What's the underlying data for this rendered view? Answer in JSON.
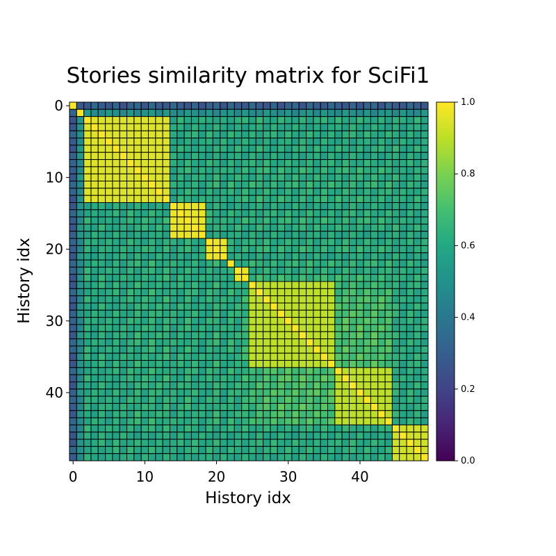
{
  "chart_data": {
    "type": "heatmap",
    "title": "Stories similarity matrix for SciFi1",
    "xlabel": "History idx",
    "ylabel": "History idx",
    "n": 50,
    "xticks": [
      0,
      10,
      20,
      30,
      40
    ],
    "yticks": [
      0,
      10,
      20,
      30,
      40
    ],
    "xtick_labels": [
      "0",
      "10",
      "20",
      "30",
      "40"
    ],
    "ytick_labels": [
      "0",
      "10",
      "20",
      "30",
      "40"
    ],
    "colorbar": {
      "range": [
        0.0,
        1.0
      ],
      "ticks": [
        0.0,
        0.2,
        0.4,
        0.6,
        0.8,
        1.0
      ],
      "tick_labels": [
        "0.0",
        "0.2",
        "0.4",
        "0.6",
        "0.8",
        "1.0"
      ]
    },
    "colormap": "viridis",
    "grid_cell_border": "#000000",
    "blocks": [
      {
        "start": 0,
        "end": 0,
        "within": 1.0
      },
      {
        "start": 1,
        "end": 1,
        "within": 1.0
      },
      {
        "start": 2,
        "end": 13,
        "within": 0.95
      },
      {
        "start": 14,
        "end": 18,
        "within": 0.97
      },
      {
        "start": 19,
        "end": 21,
        "within": 0.97
      },
      {
        "start": 22,
        "end": 22,
        "within": 1.0
      },
      {
        "start": 23,
        "end": 24,
        "within": 0.97
      },
      {
        "start": 25,
        "end": 36,
        "within": 0.9
      },
      {
        "start": 37,
        "end": 44,
        "within": 0.9
      },
      {
        "start": 45,
        "end": 49,
        "within": 0.93
      }
    ],
    "row_profile": [
      0.3,
      0.5,
      0.62,
      0.6,
      0.62,
      0.6,
      0.62,
      0.6,
      0.62,
      0.64,
      0.62,
      0.64,
      0.62,
      0.64,
      0.6,
      0.62,
      0.64,
      0.62,
      0.6,
      0.62,
      0.64,
      0.6,
      0.64,
      0.62,
      0.66,
      0.66,
      0.68,
      0.7,
      0.7,
      0.72,
      0.72,
      0.74,
      0.72,
      0.74,
      0.72,
      0.74,
      0.72,
      0.7,
      0.72,
      0.7,
      0.72,
      0.7,
      0.72,
      0.7,
      0.7,
      0.62,
      0.6,
      0.62,
      0.62,
      0.6
    ]
  }
}
